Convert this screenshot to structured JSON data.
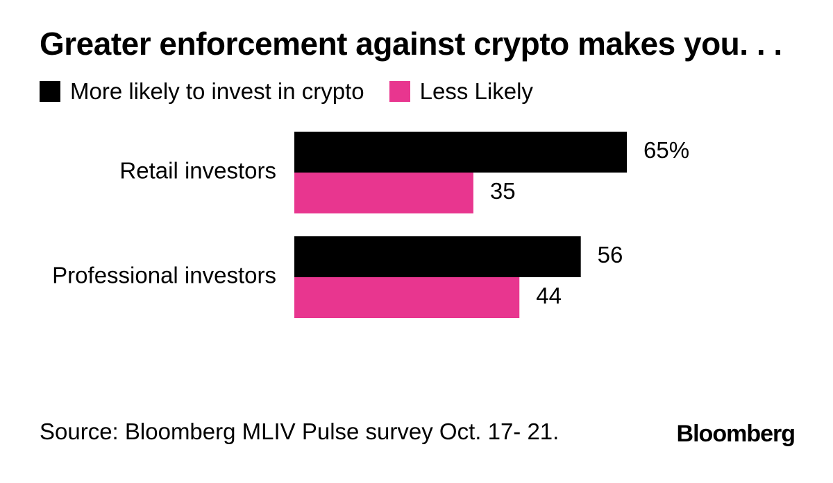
{
  "chart_data": {
    "type": "bar",
    "orientation": "horizontal",
    "title": "Greater enforcement against crypto makes you. . .",
    "categories": [
      "Retail investors",
      "Professional investors"
    ],
    "series": [
      {
        "name": "More likely to invest in crypto",
        "color": "#000000",
        "values": [
          65,
          56
        ],
        "labels": [
          "65%",
          "56"
        ]
      },
      {
        "name": "Less Likely",
        "color": "#e8368f",
        "values": [
          35,
          44
        ],
        "labels": [
          "35",
          "44"
        ]
      }
    ],
    "xlim": [
      0,
      65
    ],
    "legend_position": "top-left",
    "grid": false,
    "source": "Source: Bloomberg MLIV Pulse survey Oct. 17- 21.",
    "brand": "Bloomberg"
  }
}
